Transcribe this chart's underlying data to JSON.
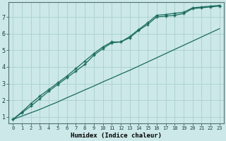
{
  "xlabel": "Humidex (Indice chaleur)",
  "bg_color": "#cce8e8",
  "grid_color": "#aacfcf",
  "line_color": "#1a6b5e",
  "xlim": [
    -0.5,
    23.5
  ],
  "ylim": [
    0.6,
    7.9
  ],
  "xticks": [
    0,
    1,
    2,
    3,
    4,
    5,
    6,
    7,
    8,
    9,
    10,
    11,
    12,
    13,
    14,
    15,
    16,
    17,
    18,
    19,
    20,
    21,
    22,
    23
  ],
  "yticks": [
    1,
    2,
    3,
    4,
    5,
    6,
    7
  ],
  "line1_x": [
    0,
    1,
    2,
    3,
    4,
    5,
    6,
    7,
    8,
    9,
    10,
    11,
    12,
    13,
    14,
    15,
    16,
    17,
    18,
    19,
    20,
    21,
    22,
    23
  ],
  "line1_y": [
    0.85,
    1.25,
    1.65,
    2.1,
    2.55,
    2.95,
    3.35,
    3.75,
    4.15,
    4.7,
    5.1,
    5.45,
    5.5,
    5.75,
    6.2,
    6.55,
    7.0,
    7.05,
    7.1,
    7.2,
    7.5,
    7.55,
    7.6,
    7.65
  ],
  "line2_x": [
    0,
    1,
    2,
    3,
    4,
    5,
    6,
    7,
    8,
    9,
    10,
    11,
    12,
    13,
    14,
    15,
    16,
    17,
    18,
    19,
    20,
    21,
    22,
    23
  ],
  "line2_y": [
    0.85,
    1.3,
    1.8,
    2.25,
    2.65,
    3.05,
    3.45,
    3.9,
    4.35,
    4.8,
    5.2,
    5.5,
    5.5,
    5.82,
    6.25,
    6.65,
    7.1,
    7.15,
    7.22,
    7.28,
    7.55,
    7.6,
    7.65,
    7.7
  ],
  "line3_x": [
    0,
    1,
    2,
    3,
    4,
    5,
    6,
    7,
    8,
    9,
    10,
    11,
    12,
    13,
    14,
    15,
    16,
    17,
    18,
    19,
    20,
    21,
    22,
    23
  ],
  "line3_y": [
    0.85,
    1.05,
    1.25,
    1.45,
    1.68,
    1.9,
    2.15,
    2.38,
    2.62,
    2.85,
    3.1,
    3.33,
    3.57,
    3.8,
    4.05,
    4.3,
    4.55,
    4.8,
    5.05,
    5.3,
    5.55,
    5.8,
    6.05,
    6.3
  ]
}
